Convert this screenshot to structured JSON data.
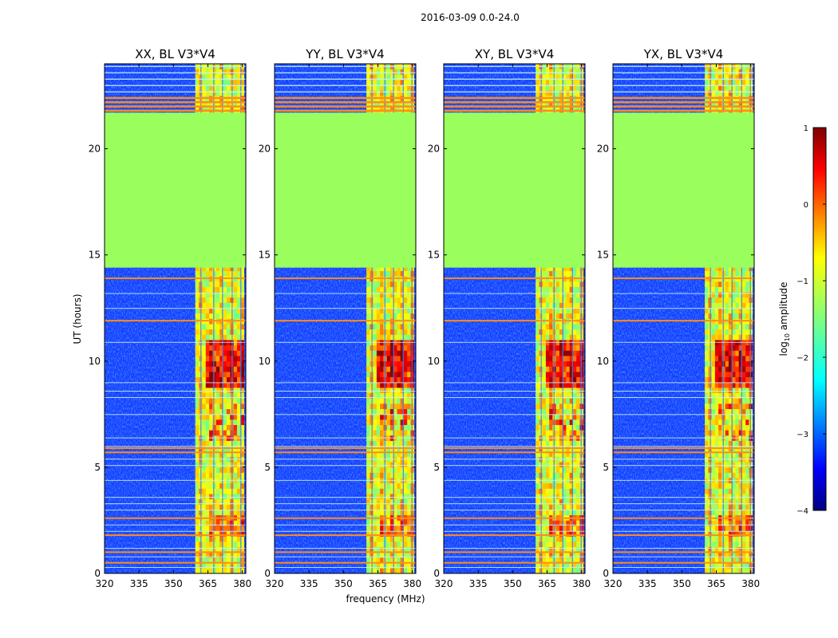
{
  "figure": {
    "suptitle": "2016-03-09 0.0-24.0",
    "xlabel": "frequency (MHz)",
    "ylabel": "UT (hours)"
  },
  "colorbar": {
    "label": "log10 amplitude",
    "label_main": "log",
    "label_sub": "10",
    "label_rest": " amplitude",
    "ticks": [
      1,
      0,
      -1,
      -2,
      -3,
      -4
    ],
    "tick_labels": [
      "1",
      "0",
      "−1",
      "−2",
      "−3",
      "−4"
    ],
    "range": [
      -4,
      1
    ],
    "colormap": "jet"
  },
  "colors": {
    "background": "#ffffff",
    "flagged": "#9aff5c",
    "rfi_line": "#ff8c1a",
    "noise_floor": "#1a3cff"
  },
  "chart_data": [
    {
      "type": "heatmap",
      "title": "XX, BL V3*V4",
      "xlim": [
        320,
        381.5
      ],
      "ylim": [
        0,
        24
      ],
      "xticks": [
        "320",
        "335",
        "350",
        "365",
        "380"
      ],
      "yticks": [
        "0",
        "5",
        "10",
        "15",
        "20"
      ],
      "band_start_mhz": 359.5,
      "flagged_hours": [
        14.4,
        21.7
      ]
    },
    {
      "type": "heatmap",
      "title": "YY, BL V3*V4",
      "xlim": [
        320,
        381.5
      ],
      "ylim": [
        0,
        24
      ],
      "xticks": [
        "320",
        "335",
        "350",
        "365",
        "380"
      ],
      "yticks": [
        "0",
        "5",
        "10",
        "15",
        "20"
      ],
      "band_start_mhz": 360.0,
      "flagged_hours": [
        14.4,
        21.7
      ]
    },
    {
      "type": "heatmap",
      "title": "XY, BL V3*V4",
      "xlim": [
        320,
        381.5
      ],
      "ylim": [
        0,
        24
      ],
      "xticks": [
        "320",
        "335",
        "350",
        "365",
        "380"
      ],
      "yticks": [
        "0",
        "5",
        "10",
        "15",
        "20"
      ],
      "band_start_mhz": 360.0,
      "flagged_hours": [
        14.4,
        21.7
      ]
    },
    {
      "type": "heatmap",
      "title": "YX, BL V3*V4",
      "xlim": [
        320,
        381.5
      ],
      "ylim": [
        0,
        24
      ],
      "xticks": [
        "320",
        "335",
        "350",
        "365",
        "380"
      ],
      "yticks": [
        "0",
        "5",
        "10",
        "15",
        "20"
      ],
      "band_start_mhz": 360.0,
      "flagged_hours": [
        14.4,
        21.7
      ]
    }
  ]
}
